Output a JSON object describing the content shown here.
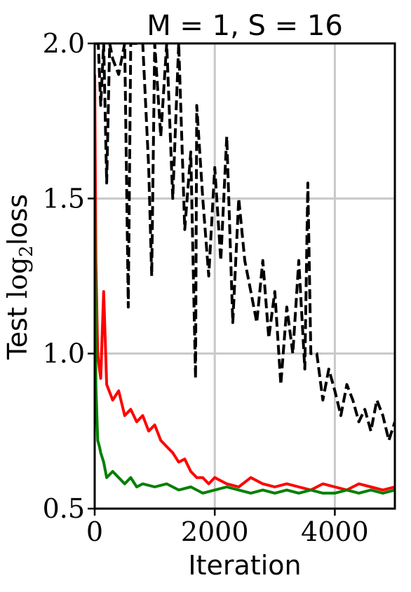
{
  "chart_data": {
    "type": "line",
    "title": "M = 1, S = 16",
    "xlabel": "Iteration",
    "ylabel": {
      "prefix": "Test ",
      "log": "log",
      "sub": "2",
      "suffix": "loss"
    },
    "xlim": [
      0,
      5000
    ],
    "ylim": [
      0.5,
      2.0
    ],
    "xticks": [
      0,
      2000,
      4000
    ],
    "xtick_labels": [
      "0",
      "2000",
      "4000"
    ],
    "yticks": [
      0.5,
      1.0,
      1.5,
      2.0
    ],
    "ytick_labels": [
      "0.5",
      "1.0",
      "1.5",
      "2.0"
    ],
    "grid": true,
    "series": [
      {
        "color": "#000000",
        "dash": true,
        "x": [
          0,
          20,
          60,
          100,
          150,
          200,
          250,
          300,
          400,
          500,
          560,
          600,
          700,
          800,
          900,
          950,
          1000,
          1100,
          1200,
          1300,
          1400,
          1500,
          1600,
          1680,
          1700,
          1800,
          1900,
          2000,
          2100,
          2200,
          2300,
          2400,
          2500,
          2600,
          2700,
          2800,
          2900,
          3000,
          3100,
          3200,
          3300,
          3400,
          3500,
          3550,
          3600,
          3700,
          3800,
          3900,
          4000,
          4100,
          4200,
          4300,
          4400,
          4500,
          4600,
          4700,
          4800,
          4900,
          5000
        ],
        "y": [
          2.0,
          2.0,
          2.0,
          1.8,
          2.0,
          1.55,
          2.0,
          1.95,
          1.9,
          2.0,
          1.15,
          2.0,
          2.0,
          2.0,
          1.6,
          1.25,
          2.0,
          1.7,
          2.0,
          1.5,
          2.0,
          1.4,
          1.65,
          0.92,
          1.8,
          1.5,
          1.25,
          1.6,
          1.3,
          1.7,
          1.1,
          1.5,
          1.3,
          1.2,
          1.1,
          1.3,
          1.05,
          1.2,
          0.9,
          1.15,
          1.0,
          1.3,
          0.95,
          1.55,
          1.0,
          1.0,
          0.85,
          0.95,
          0.88,
          0.8,
          0.9,
          0.85,
          0.78,
          0.82,
          0.75,
          0.85,
          0.8,
          0.72,
          0.78
        ]
      },
      {
        "color": "#ff0000",
        "dash": false,
        "x": [
          0,
          20,
          50,
          80,
          100,
          150,
          200,
          300,
          400,
          500,
          600,
          700,
          800,
          900,
          1000,
          1100,
          1200,
          1300,
          1400,
          1500,
          1600,
          1700,
          1800,
          1900,
          2000,
          2200,
          2400,
          2600,
          2800,
          3000,
          3200,
          3400,
          3600,
          3800,
          4000,
          4200,
          4400,
          4600,
          4800,
          5000
        ],
        "y": [
          1.9,
          1.3,
          1.0,
          0.95,
          0.92,
          1.2,
          0.9,
          0.85,
          0.88,
          0.8,
          0.82,
          0.78,
          0.8,
          0.75,
          0.77,
          0.72,
          0.7,
          0.68,
          0.65,
          0.66,
          0.62,
          0.6,
          0.6,
          0.58,
          0.6,
          0.58,
          0.57,
          0.6,
          0.58,
          0.57,
          0.58,
          0.57,
          0.56,
          0.58,
          0.57,
          0.56,
          0.58,
          0.57,
          0.56,
          0.57
        ]
      },
      {
        "color": "#008000",
        "dash": false,
        "x": [
          0,
          20,
          50,
          80,
          100,
          150,
          200,
          300,
          400,
          500,
          600,
          700,
          800,
          1000,
          1200,
          1400,
          1600,
          1800,
          2000,
          2200,
          2400,
          2600,
          2800,
          3000,
          3200,
          3400,
          3600,
          3800,
          4000,
          4200,
          4400,
          4600,
          4800,
          5000
        ],
        "y": [
          1.5,
          0.9,
          0.72,
          0.7,
          0.68,
          0.65,
          0.6,
          0.62,
          0.6,
          0.58,
          0.6,
          0.57,
          0.58,
          0.57,
          0.58,
          0.56,
          0.57,
          0.55,
          0.56,
          0.57,
          0.56,
          0.55,
          0.56,
          0.55,
          0.56,
          0.55,
          0.56,
          0.55,
          0.55,
          0.56,
          0.55,
          0.56,
          0.55,
          0.56
        ]
      }
    ]
  }
}
